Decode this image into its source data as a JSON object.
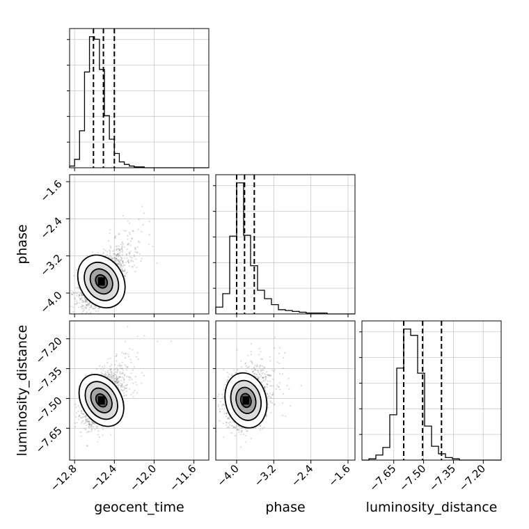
{
  "chart_data": {
    "type": "corner",
    "parameters": [
      {
        "key": "geocent_time",
        "label": "geocent_time",
        "range": [
          -12.85,
          -11.45
        ],
        "ticks": [
          -12.8,
          -12.4,
          -12.0,
          -11.6
        ],
        "tick_labels": [
          "−12.8",
          "−12.4",
          "−12.0",
          "−11.6"
        ],
        "quantiles": [
          -12.61,
          -12.51,
          -12.4
        ]
      },
      {
        "key": "phase",
        "label": "phase",
        "range": [
          -4.45,
          -1.45
        ],
        "ticks": [
          -4.0,
          -3.2,
          -2.4,
          -1.6
        ],
        "tick_labels": [
          "−4.0",
          "−3.2",
          "−2.4",
          "−1.6"
        ],
        "quantiles": [
          -4.0,
          -3.83,
          -3.62
        ]
      },
      {
        "key": "luminosity_distance",
        "label": "luminosity_distance",
        "range": [
          -7.81,
          -7.11
        ],
        "ticks": [
          -7.65,
          -7.5,
          -7.35,
          -7.2
        ],
        "tick_labels": [
          "−7.65",
          "−7.50",
          "−7.35",
          "−7.20"
        ],
        "quantiles": [
          -7.6,
          -7.505,
          -7.41
        ]
      }
    ],
    "histograms": [
      {
        "param": "geocent_time",
        "bin_start": -12.85,
        "bin_width": 0.05,
        "counts": [
          2,
          10,
          44,
          114,
          156,
          153,
          117,
          62,
          34,
          17,
          7,
          4,
          2,
          1,
          1,
          0,
          0,
          0,
          0,
          0,
          0,
          0,
          0,
          0,
          0,
          0,
          0,
          0
        ]
      },
      {
        "param": "phase",
        "bin_start": -4.45,
        "bin_width": 0.15,
        "counts": [
          8,
          24,
          92,
          155,
          93,
          57,
          28,
          18,
          11,
          5,
          4,
          3,
          2,
          1,
          1,
          1,
          0,
          0,
          0,
          0
        ]
      },
      {
        "param": "luminosity_distance",
        "bin_start": -7.81,
        "bin_width": 0.035,
        "counts": [
          0,
          1,
          4,
          10,
          36,
          73,
          104,
          99,
          69,
          27,
          11,
          5,
          2,
          1,
          0,
          0,
          0,
          0,
          0,
          0
        ]
      }
    ],
    "joint": [
      {
        "x": "geocent_time",
        "y": "phase",
        "mean": [
          -12.53,
          -3.75
        ],
        "sd": [
          0.11,
          0.3
        ],
        "corr": 0.55
      },
      {
        "x": "geocent_time",
        "y": "luminosity_distance",
        "mean": [
          -12.53,
          -7.51
        ],
        "sd": [
          0.1,
          0.07
        ],
        "corr": 0.5
      },
      {
        "x": "phase",
        "y": "luminosity_distance",
        "mean": [
          -3.8,
          -7.51
        ],
        "sd": [
          0.22,
          0.07
        ],
        "corr": 0.2
      }
    ],
    "grid": true,
    "quantile_style": "dashed"
  }
}
